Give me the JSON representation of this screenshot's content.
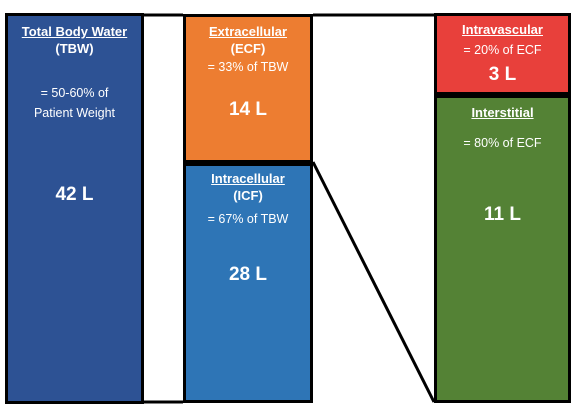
{
  "tbw": {
    "title": "Total Body Water",
    "abbr": "(TBW)",
    "note_line1": "= 50-60% of",
    "note_line2": "Patient Weight",
    "volume": "42 L",
    "color": "#2d5294"
  },
  "ecf": {
    "title": "Extracellular",
    "abbr": "(ECF)",
    "note": "= 33% of TBW",
    "volume": "14 L",
    "color": "#ed7d31"
  },
  "icf": {
    "title": "Intracellular",
    "abbr": "(ICF)",
    "note": "= 67% of TBW",
    "volume": "28 L",
    "color": "#2e75b6"
  },
  "intravascular": {
    "title": "Intravascular",
    "note": "= 20% of ECF",
    "volume": "3 L",
    "color": "#e8403b"
  },
  "interstitial": {
    "title": "Interstitial",
    "note": "= 80% of ECF",
    "volume": "11 L",
    "color": "#548235"
  }
}
